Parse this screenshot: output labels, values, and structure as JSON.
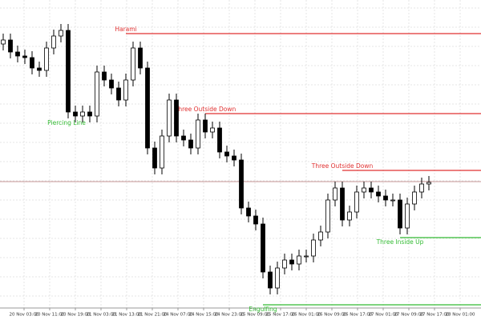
{
  "chart_data": {
    "type": "candlestick",
    "open": [
      330,
      335,
      320,
      315,
      313,
      300,
      297,
      325,
      340,
      347,
      245,
      240,
      245,
      240,
      295,
      285,
      275,
      260,
      285,
      325,
      300,
      200,
      175,
      215,
      260,
      215,
      210,
      200,
      235,
      220,
      225,
      195,
      190,
      185,
      125,
      115,
      105,
      45,
      25,
      50,
      60,
      55,
      65,
      65,
      85,
      95,
      135,
      150,
      110,
      120,
      145,
      150,
      145,
      140,
      135,
      135,
      100,
      130,
      145,
      155
    ],
    "high": [
      343,
      343,
      328,
      323,
      321,
      308,
      333,
      348,
      355,
      355,
      253,
      253,
      253,
      303,
      303,
      293,
      283,
      293,
      333,
      333,
      308,
      208,
      223,
      268,
      268,
      223,
      218,
      243,
      243,
      233,
      233,
      203,
      198,
      193,
      133,
      123,
      113,
      53,
      58,
      68,
      68,
      73,
      73,
      93,
      103,
      143,
      158,
      158,
      128,
      153,
      158,
      158,
      153,
      148,
      143,
      143,
      138,
      153,
      163,
      165
    ],
    "low": [
      322,
      312,
      307,
      305,
      292,
      289,
      289,
      317,
      332,
      237,
      232,
      232,
      232,
      232,
      277,
      267,
      252,
      252,
      277,
      292,
      192,
      167,
      167,
      207,
      207,
      202,
      192,
      192,
      212,
      212,
      187,
      182,
      177,
      117,
      107,
      97,
      37,
      17,
      17,
      42,
      47,
      47,
      57,
      57,
      77,
      87,
      127,
      102,
      102,
      112,
      137,
      137,
      132,
      127,
      127,
      92,
      92,
      122,
      137,
      147
    ],
    "close": [
      335,
      320,
      315,
      313,
      300,
      297,
      325,
      340,
      347,
      245,
      240,
      245,
      240,
      295,
      285,
      275,
      260,
      285,
      325,
      300,
      200,
      175,
      215,
      260,
      215,
      210,
      200,
      235,
      220,
      225,
      195,
      190,
      185,
      125,
      115,
      105,
      45,
      25,
      50,
      60,
      55,
      65,
      65,
      85,
      95,
      135,
      150,
      110,
      120,
      145,
      150,
      145,
      140,
      135,
      135,
      100,
      130,
      145,
      155,
      157
    ],
    "ylim": [
      0,
      385
    ],
    "current_price": 158,
    "grid": true,
    "annotations": [
      {
        "label": "Harami",
        "at": 17,
        "level": 343,
        "color": "#e03030"
      },
      {
        "label": "Piercing Line",
        "at": 9,
        "level": null,
        "color": "#33bb33"
      },
      {
        "label": "Three Outside Down",
        "at": 28,
        "level": 243,
        "color": "#e03030"
      },
      {
        "label": "Engulfing",
        "at": 36,
        "level": 4,
        "color": "#33bb33"
      },
      {
        "label": "Three Outside Down",
        "at": 47,
        "level": 172,
        "color": "#e03030"
      },
      {
        "label": "Three Inside Up",
        "at": 55,
        "level": 88,
        "color": "#33bb33"
      }
    ],
    "x_labels": [
      "20 Nov 03:00",
      "20 Nov 11:00",
      "20 Nov 19:00",
      "21 Nov 03:00",
      "21 Nov 13:00",
      "21 Nov 21:00",
      "24 Nov 07:00",
      "24 Nov 15:00",
      "24 Nov 23:00",
      "25 Nov 09:00",
      "25 Nov 17:00",
      "26 Nov 01:00",
      "26 Nov 09:00",
      "26 Nov 17:00",
      "27 Nov 01:00",
      "27 Nov 09:00",
      "27 Nov 17:00",
      "28 Nov 01:00"
    ]
  }
}
